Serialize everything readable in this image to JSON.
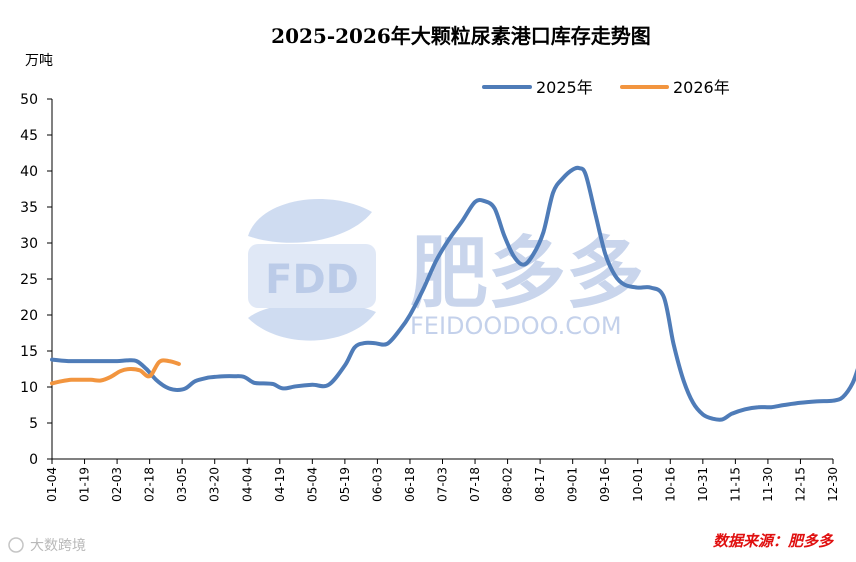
{
  "colors": {
    "series_2025": "#4f7cb8",
    "series_2026": "#f2953f",
    "axis": "#000000",
    "source": "#e01010",
    "watermark": "#9db4de"
  },
  "chart_data": {
    "type": "line",
    "title": "2025-2026年大颗粒尿素港口库存走势图",
    "ylabel": "万吨",
    "xlabel": "",
    "ylim": [
      0,
      50
    ],
    "yticks": [
      0,
      5,
      10,
      15,
      20,
      25,
      30,
      35,
      40,
      45,
      50
    ],
    "categories": [
      "01-04",
      "01-19",
      "02-03",
      "02-18",
      "03-05",
      "03-20",
      "04-04",
      "04-19",
      "05-04",
      "05-19",
      "06-03",
      "06-18",
      "07-03",
      "07-18",
      "08-02",
      "08-17",
      "09-01",
      "09-16",
      "10-01",
      "10-16",
      "10-31",
      "11-15",
      "11-30",
      "12-15",
      "12-30"
    ],
    "legend_position": "top-right",
    "series": [
      {
        "name": "2025年",
        "x": [
          0,
          0.5,
          1,
          1.5,
          2,
          2.3,
          2.6,
          2.9,
          3.2,
          3.5,
          3.8,
          4.1,
          4.4,
          4.8,
          5,
          5.3,
          5.6,
          5.9,
          6.2,
          6.5,
          6.8,
          7.1,
          7.5,
          8,
          8.5,
          9,
          9.3,
          9.6,
          9.9,
          10.3,
          10.7,
          11,
          11.4,
          11.8,
          12.2,
          12.6,
          13,
          13.3,
          13.6,
          13.9,
          14.2,
          14.5,
          14.8,
          15.1,
          15.4,
          15.7,
          16,
          16.2,
          16.4,
          16.7,
          17.0,
          17.3,
          17.6,
          18.0,
          18.4,
          18.8,
          19.1,
          19.4,
          19.7,
          20.0,
          20.3,
          20.6,
          20.9,
          21.3,
          21.7,
          22.1,
          22.5,
          23,
          23.5,
          24,
          24.3,
          24.6,
          24.8
        ],
        "values": [
          13.8,
          13.6,
          13.6,
          13.6,
          13.6,
          13.7,
          13.6,
          12.5,
          11,
          10,
          9.6,
          9.8,
          10.8,
          11.3,
          11.4,
          11.5,
          11.5,
          11.4,
          10.6,
          10.5,
          10.4,
          9.8,
          10.1,
          10.3,
          10.3,
          13,
          15.5,
          16.1,
          16.1,
          16.0,
          18,
          20,
          23.5,
          27.5,
          30.5,
          33,
          35.7,
          35.8,
          34.8,
          31,
          28.1,
          27.0,
          28.5,
          31.5,
          37,
          39,
          40.2,
          40.4,
          39.5,
          34,
          28.5,
          25.5,
          24.2,
          23.8,
          23.8,
          22.5,
          16,
          11,
          7.8,
          6.2,
          5.6,
          5.5,
          6.3,
          6.9,
          7.2,
          7.2,
          7.5,
          7.8,
          8.0,
          8.1,
          8.6,
          10.5,
          13
        ]
      },
      {
        "name": "2026年",
        "x": [
          0,
          0.3,
          0.6,
          0.9,
          1.2,
          1.5,
          1.8,
          2.1,
          2.4,
          2.7,
          3.0,
          3.3,
          3.6,
          3.9
        ],
        "values": [
          10.5,
          10.8,
          11.0,
          11.0,
          11.0,
          10.9,
          11.4,
          12.2,
          12.5,
          12.3,
          11.5,
          13.5,
          13.6,
          13.2
        ]
      }
    ]
  },
  "watermark": {
    "logo_text": "FDD",
    "brand_cn": "肥多多",
    "brand_en": "FEIDOODOO.COM"
  },
  "footer": {
    "source": "数据来源：肥多多",
    "credit": "大数跨境"
  }
}
